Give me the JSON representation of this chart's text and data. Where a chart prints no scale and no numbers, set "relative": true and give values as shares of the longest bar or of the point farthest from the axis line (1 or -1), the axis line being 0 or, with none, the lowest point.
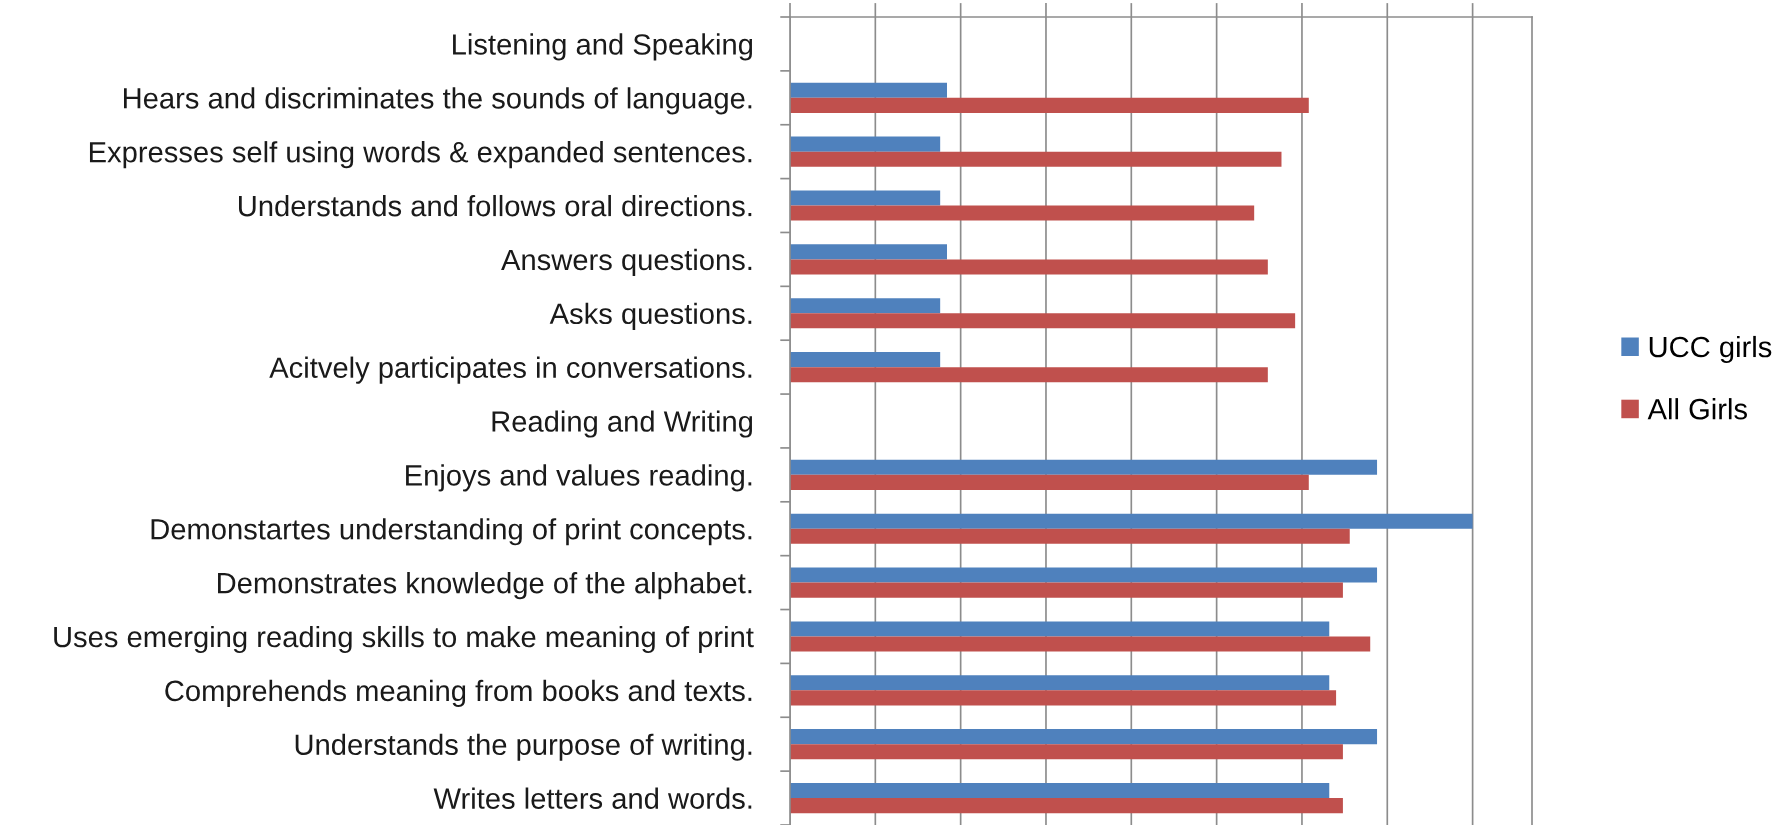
{
  "chart_data": {
    "type": "bar",
    "orientation": "horizontal",
    "relative": true,
    "categories": [
      "Listening and Speaking",
      "Hears and discriminates the sounds of language.",
      "Expresses self using words & expanded sentences.",
      "Understands and follows oral directions.",
      "Answers questions.",
      "Asks questions.",
      "Acitvely participates in conversations.",
      "Reading and Writing",
      "Enjoys and values reading.",
      "Demonstartes understanding of print concepts.",
      "Demonstrates knowledge of the alphabet.",
      "Uses emerging reading skills to make meaning of print",
      "Comprehends meaning from books and texts.",
      "Understands the purpose of writing.",
      "Writes letters and words."
    ],
    "series": [
      {
        "name": "UCC girls",
        "color": "#4f81bd",
        "values": [
          null,
          0.23,
          0.22,
          0.22,
          0.23,
          0.22,
          0.22,
          null,
          0.86,
          1,
          0.86,
          0.79,
          0.79,
          0.86,
          0.79
        ]
      },
      {
        "name": "All Girls",
        "color": "#c0504d",
        "values": [
          null,
          0.76,
          0.72,
          0.68,
          0.7,
          0.74,
          0.7,
          null,
          0.76,
          0.82,
          0.81,
          0.85,
          0.8,
          0.81,
          0.81
        ]
      }
    ],
    "grid": "x",
    "legend": "right",
    "tick_labels": "y"
  }
}
